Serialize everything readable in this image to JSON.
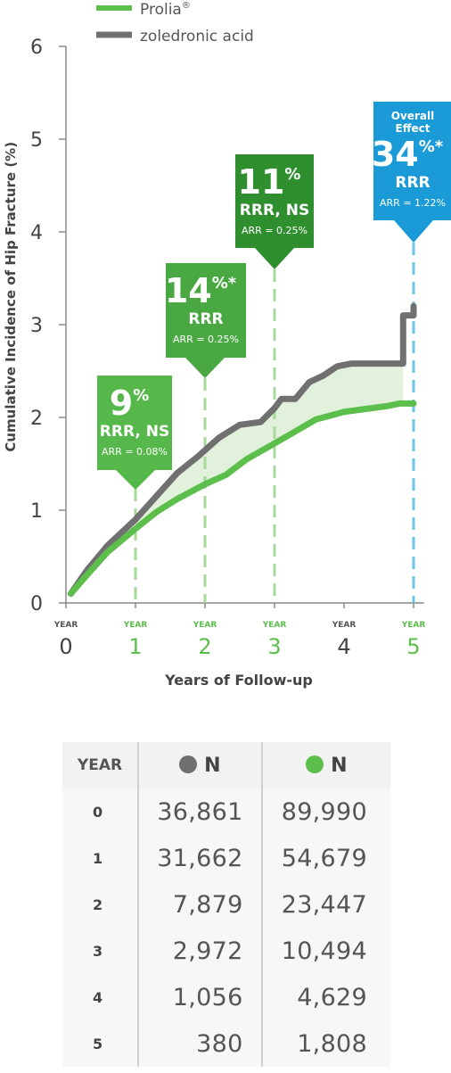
{
  "colors": {
    "prolia": "#5cbf4b",
    "zoledronic": "#707070",
    "callout_dark_green": "#2f8f2e",
    "callout_mid_green": "#4aa843",
    "callout_light_green": "#56b84a",
    "callout_blue": "#1a9ad6",
    "shade": "#e2f1dc"
  },
  "chart_data": {
    "type": "line",
    "ylabel": "Cumulative Incidence of Hip Fracture (%)",
    "xlabel": "Years of Follow-up",
    "ylim": [
      0,
      6
    ],
    "xlim": [
      0,
      5
    ],
    "yticks": [
      "0",
      "1",
      "2",
      "3",
      "4",
      "5",
      "6"
    ],
    "xticks": [
      {
        "top": "YEAR",
        "value": "0",
        "highlight": false
      },
      {
        "top": "YEAR",
        "value": "1",
        "highlight": true
      },
      {
        "top": "YEAR",
        "value": "2",
        "highlight": true
      },
      {
        "top": "YEAR",
        "value": "3",
        "highlight": true
      },
      {
        "top": "YEAR",
        "value": "4",
        "highlight": false
      },
      {
        "top": "YEAR",
        "value": "5",
        "highlight": true
      }
    ],
    "legend": {
      "placement": "top-left",
      "entries": [
        {
          "label": "Prolia",
          "superscript": "®"
        },
        {
          "label": "zoledronic acid",
          "superscript": ""
        }
      ]
    },
    "series": [
      {
        "name": "zoledronic acid",
        "x": [
          0.07,
          0.3,
          0.6,
          1.0,
          1.3,
          1.6,
          1.9,
          2.2,
          2.5,
          2.8,
          3.0,
          3.1,
          3.3,
          3.5,
          3.7,
          3.9,
          4.1,
          4.4,
          4.6,
          4.85,
          4.85,
          5.0,
          5.0
        ],
        "y": [
          0.1,
          0.35,
          0.62,
          0.9,
          1.15,
          1.4,
          1.58,
          1.78,
          1.92,
          1.95,
          2.1,
          2.2,
          2.2,
          2.38,
          2.45,
          2.55,
          2.58,
          2.58,
          2.58,
          2.58,
          3.1,
          3.1,
          3.2
        ]
      },
      {
        "name": "Prolia",
        "x": [
          0.07,
          0.3,
          0.6,
          1.0,
          1.3,
          1.6,
          2.0,
          2.3,
          2.6,
          3.0,
          3.3,
          3.6,
          4.0,
          4.3,
          4.6,
          4.8,
          5.0
        ],
        "y": [
          0.1,
          0.3,
          0.55,
          0.8,
          0.98,
          1.12,
          1.28,
          1.38,
          1.55,
          1.72,
          1.85,
          1.98,
          2.06,
          2.09,
          2.12,
          2.15,
          2.15
        ]
      }
    ],
    "callouts": [
      {
        "year": 1,
        "big": "9",
        "sup": "%",
        "line1": "RRR, NS",
        "small": "ARR = 0.08%",
        "color": "light"
      },
      {
        "year": 2,
        "big": "14",
        "sup": "%*",
        "line1": "RRR",
        "small": "ARR = 0.25%",
        "color": "mid"
      },
      {
        "year": 3,
        "big": "11",
        "sup": "%",
        "line1": "RRR, NS",
        "small": "ARR = 0.25%",
        "color": "dark"
      },
      {
        "year": 5,
        "head1": "Overall",
        "head2": "Effect",
        "big": "34",
        "sup": "%*",
        "line1": "RRR",
        "small": "ARR = 1.22%",
        "color": "blue"
      }
    ]
  },
  "table": {
    "header": {
      "year": "YEAR",
      "col1": "N",
      "col2": "N"
    },
    "rows": [
      {
        "year": "0",
        "zoledronic": "36,861",
        "prolia": "89,990"
      },
      {
        "year": "1",
        "zoledronic": "31,662",
        "prolia": "54,679"
      },
      {
        "year": "2",
        "zoledronic": "7,879",
        "prolia": "23,447"
      },
      {
        "year": "3",
        "zoledronic": "2,972",
        "prolia": "10,494"
      },
      {
        "year": "4",
        "zoledronic": "1,056",
        "prolia": "4,629"
      },
      {
        "year": "5",
        "zoledronic": "380",
        "prolia": "1,808"
      }
    ]
  }
}
